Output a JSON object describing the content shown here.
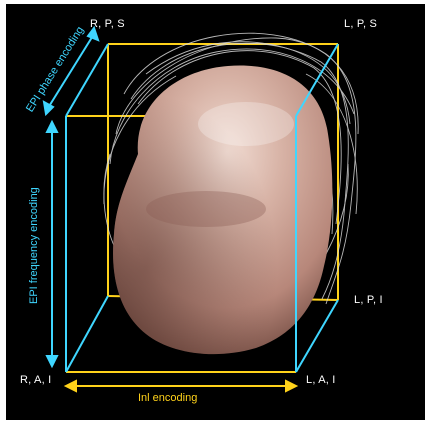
{
  "corners": {
    "top_left": "R, P, S",
    "top_right": "L, P, S",
    "mid_right": "L, P, I",
    "bottom_left": "R, A, I",
    "bottom_right": "L, A, I"
  },
  "axes": {
    "phase": "EPI phase encoding",
    "frequency": "EPI frequency encoding",
    "inplane": "Inl encoding"
  },
  "colors": {
    "background": "#000000",
    "front_box": "#3fd6ff",
    "back_box": "#ffd21a",
    "skin": "#c79c8e"
  }
}
